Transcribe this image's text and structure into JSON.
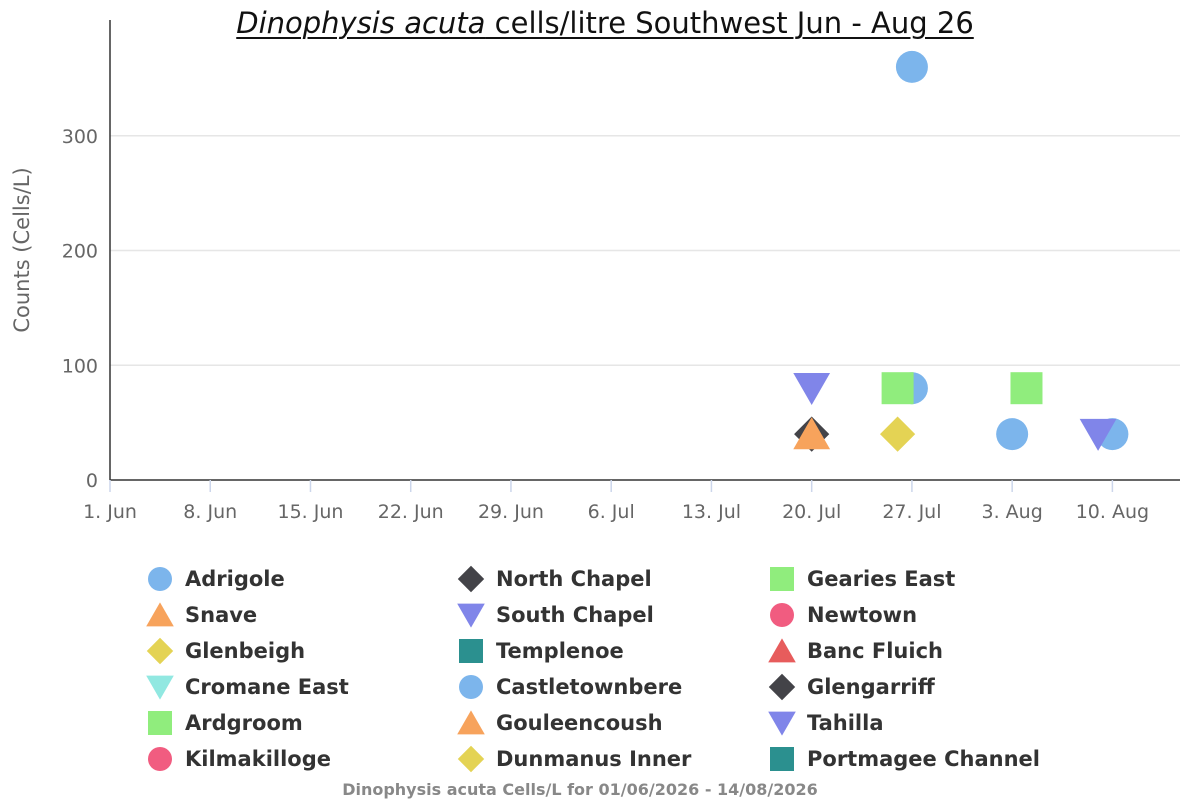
{
  "chart_data": {
    "type": "scatter",
    "title": {
      "italic_part": "Dinophysis acuta",
      "rest": " cells/litre Southwest Jun - Aug 26"
    },
    "ylabel": "Counts (Cells/L)",
    "xlabel": "",
    "x_ticks": [
      {
        "date": "2026-06-01",
        "label": "1. Jun"
      },
      {
        "date": "2026-06-08",
        "label": "8. Jun"
      },
      {
        "date": "2026-06-15",
        "label": "15. Jun"
      },
      {
        "date": "2026-06-22",
        "label": "22. Jun"
      },
      {
        "date": "2026-06-29",
        "label": "29. Jun"
      },
      {
        "date": "2026-07-06",
        "label": "6. Jul"
      },
      {
        "date": "2026-07-13",
        "label": "13. Jul"
      },
      {
        "date": "2026-07-20",
        "label": "20. Jul"
      },
      {
        "date": "2026-07-27",
        "label": "27. Jul"
      },
      {
        "date": "2026-08-03",
        "label": "3. Aug"
      },
      {
        "date": "2026-08-10",
        "label": "10. Aug"
      }
    ],
    "xlim": [
      "2026-06-01",
      "2026-08-15"
    ],
    "y_ticks": [
      0,
      100,
      200,
      300
    ],
    "ylim": [
      0,
      400
    ],
    "grid": true,
    "legend_placement": "bottom",
    "series": [
      {
        "name": "Adrigole",
        "marker": "circle",
        "color": "#7cb5ec",
        "points": [
          {
            "x": "2026-07-27",
            "y": 360
          },
          {
            "x": "2026-07-27",
            "y": 80
          },
          {
            "x": "2026-08-03",
            "y": 40
          },
          {
            "x": "2026-08-10",
            "y": 40
          }
        ]
      },
      {
        "name": "Snave",
        "marker": "triangle",
        "color": "#f7a35c",
        "points": []
      },
      {
        "name": "Glenbeigh",
        "marker": "diamond",
        "color": "#e4d354",
        "points": []
      },
      {
        "name": "Cromane East",
        "marker": "triangle-down",
        "color": "#91e8e1",
        "points": []
      },
      {
        "name": "Ardgroom",
        "marker": "square",
        "color": "#90ed7d",
        "points": []
      },
      {
        "name": "Kilmakilloge",
        "marker": "circle",
        "color": "#f15c80",
        "points": []
      },
      {
        "name": "North Chapel",
        "marker": "diamond",
        "color": "#434348",
        "points": [
          {
            "x": "2026-07-20",
            "y": 40
          }
        ]
      },
      {
        "name": "South Chapel",
        "marker": "triangle-down",
        "color": "#8085e9",
        "points": [
          {
            "x": "2026-07-20",
            "y": 80
          }
        ]
      },
      {
        "name": "Templenoe",
        "marker": "square",
        "color": "#2b908f",
        "points": []
      },
      {
        "name": "Castletownbere",
        "marker": "circle",
        "color": "#7cb5ec",
        "points": []
      },
      {
        "name": "Gouleencoush",
        "marker": "triangle",
        "color": "#f7a35c",
        "points": [
          {
            "x": "2026-07-20",
            "y": 40
          }
        ]
      },
      {
        "name": "Dunmanus Inner",
        "marker": "diamond",
        "color": "#e4d354",
        "points": [
          {
            "x": "2026-07-26",
            "y": 40
          }
        ]
      },
      {
        "name": "Gearies East",
        "marker": "square",
        "color": "#90ed7d",
        "points": [
          {
            "x": "2026-07-26",
            "y": 80
          },
          {
            "x": "2026-08-04",
            "y": 80
          }
        ]
      },
      {
        "name": "Newtown",
        "marker": "circle",
        "color": "#f15c80",
        "points": []
      },
      {
        "name": "Banc Fluich",
        "marker": "triangle",
        "color": "#e75c5c",
        "points": []
      },
      {
        "name": "Glengarriff",
        "marker": "diamond",
        "color": "#434348",
        "points": []
      },
      {
        "name": "Tahilla",
        "marker": "triangle-down",
        "color": "#8085e9",
        "points": [
          {
            "x": "2026-08-09",
            "y": 40
          }
        ]
      },
      {
        "name": "Portmagee Channel",
        "marker": "square",
        "color": "#2b908f",
        "points": []
      }
    ]
  },
  "caption": "Dinophysis acuta Cells/L for 01/06/2026 - 14/08/2026"
}
